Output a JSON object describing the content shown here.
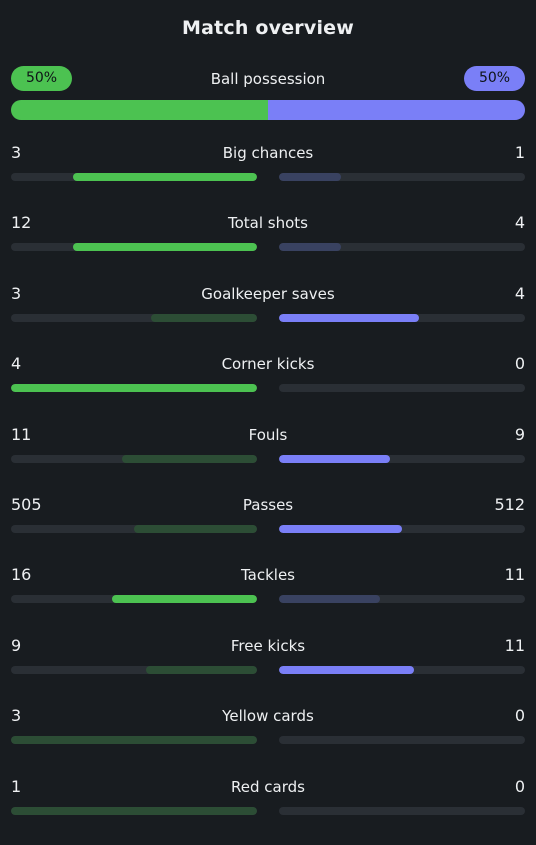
{
  "title": "Match overview",
  "colors": {
    "home_strong": "#4cc251",
    "home_weak": "#2c4d35",
    "away_strong": "#7a7ff7",
    "away_weak": "#394261",
    "track": "#2a2f35"
  },
  "possession": {
    "label": "Ball possession",
    "home_text": "50%",
    "away_text": "50%",
    "home": 50,
    "away": 50
  },
  "stats": [
    {
      "label": "Big chances",
      "home": "3",
      "away": "1",
      "home_frac": 0.75,
      "away_frac": 0.25,
      "winner": "home"
    },
    {
      "label": "Total shots",
      "home": "12",
      "away": "4",
      "home_frac": 0.75,
      "away_frac": 0.25,
      "winner": "home"
    },
    {
      "label": "Goalkeeper saves",
      "home": "3",
      "away": "4",
      "home_frac": 0.43,
      "away_frac": 0.57,
      "winner": "away"
    },
    {
      "label": "Corner kicks",
      "home": "4",
      "away": "0",
      "home_frac": 1.0,
      "away_frac": 0.0,
      "winner": "home"
    },
    {
      "label": "Fouls",
      "home": "11",
      "away": "9",
      "home_frac": 0.55,
      "away_frac": 0.45,
      "winner": "away"
    },
    {
      "label": "Passes",
      "home": "505",
      "away": "512",
      "home_frac": 0.5,
      "away_frac": 0.5,
      "winner": "away"
    },
    {
      "label": "Tackles",
      "home": "16",
      "away": "11",
      "home_frac": 0.59,
      "away_frac": 0.41,
      "winner": "home"
    },
    {
      "label": "Free kicks",
      "home": "9",
      "away": "11",
      "home_frac": 0.45,
      "away_frac": 0.55,
      "winner": "away"
    },
    {
      "label": "Yellow cards",
      "home": "3",
      "away": "0",
      "home_frac": 1.0,
      "away_frac": 0.0,
      "winner": "away"
    },
    {
      "label": "Red cards",
      "home": "1",
      "away": "0",
      "home_frac": 1.0,
      "away_frac": 0.0,
      "winner": "away"
    }
  ]
}
